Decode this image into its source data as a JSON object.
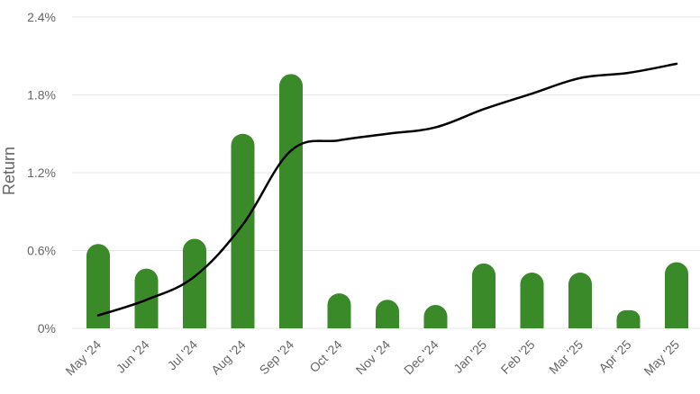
{
  "chart_data": {
    "type": "bar",
    "categories": [
      "May '24",
      "Jun '24",
      "Jul '24",
      "Aug '24",
      "Sep '24",
      "Oct '24",
      "Nov '24",
      "Dec '24",
      "Jan '25",
      "Feb '25",
      "Mar '25",
      "Apr '25",
      "May '25"
    ],
    "ylabel": "Return",
    "xlabel": "",
    "title": "",
    "ylim": [
      0,
      2.4
    ],
    "y_ticks": [
      "0%",
      "0.6%",
      "1.2%",
      "1.8%",
      "2.4%"
    ],
    "y_tick_values": [
      0,
      0.6,
      1.2,
      1.8,
      2.4
    ],
    "grid": true,
    "series": [
      {
        "type": "bar",
        "color": "#3a8a2a",
        "values": [
          0.65,
          0.46,
          0.69,
          1.5,
          1.96,
          0.27,
          0.22,
          0.18,
          0.5,
          0.43,
          0.43,
          0.14,
          0.51
        ]
      },
      {
        "type": "line",
        "color": "#000000",
        "values": [
          0.1,
          0.22,
          0.4,
          0.8,
          1.37,
          1.45,
          1.5,
          1.55,
          1.69,
          1.81,
          1.93,
          1.97,
          2.04
        ]
      }
    ]
  }
}
